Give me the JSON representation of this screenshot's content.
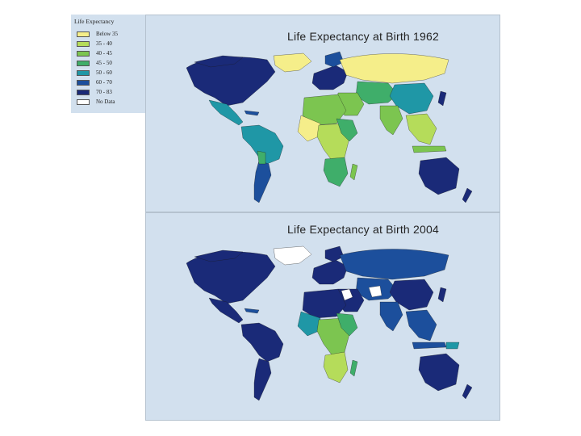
{
  "legend": {
    "title": "Life Expectancy",
    "items": [
      {
        "label": "Below 35",
        "color": "#f5ee8a"
      },
      {
        "label": "35 - 40",
        "color": "#b5dc5a"
      },
      {
        "label": "40 - 45",
        "color": "#7cc550"
      },
      {
        "label": "45 - 50",
        "color": "#3fae6a"
      },
      {
        "label": "50 - 60",
        "color": "#1f97a6"
      },
      {
        "label": "60 - 70",
        "color": "#1c4f9c"
      },
      {
        "label": "70 - 83",
        "color": "#1a2a78"
      },
      {
        "label": "No Data",
        "color": "#ffffff"
      }
    ]
  },
  "maps": [
    {
      "title": "Life Expectancy at Birth 1962"
    },
    {
      "title": "Life Expectancy at Birth 2004"
    }
  ],
  "colors": {
    "ocean": "#d2e0ee",
    "no_data": "#ffffff"
  }
}
